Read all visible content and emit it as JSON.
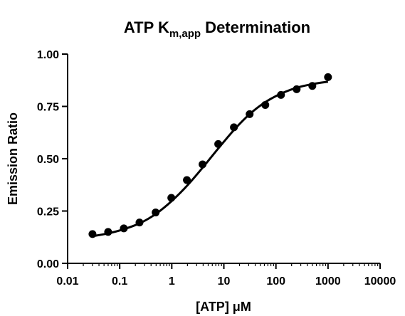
{
  "chart_data": {
    "type": "scatter",
    "title": "ATP K",
    "title_subscript": "m,app",
    "title_suffix": " Determination",
    "xlabel": "[ATP] μM",
    "ylabel": "Emission Ratio",
    "x_scale": "log",
    "xlim": [
      0.01,
      10000
    ],
    "ylim": [
      0,
      1
    ],
    "x_ticks": [
      "0.01",
      "0.1",
      "1",
      "10",
      "100",
      "1000",
      "10000"
    ],
    "y_ticks": [
      "0.00",
      "0.25",
      "0.50",
      "0.75",
      "1.00"
    ],
    "grid": false,
    "series": [
      {
        "x": [
          0.03,
          0.06,
          0.12,
          0.24,
          0.49,
          0.98,
          1.95,
          3.9,
          7.8,
          15.6,
          31.25,
          62.5,
          125,
          250,
          500,
          1000
        ],
        "y": [
          0.14,
          0.15,
          0.167,
          0.195,
          0.243,
          0.313,
          0.398,
          0.473,
          0.57,
          0.65,
          0.713,
          0.757,
          0.805,
          0.832,
          0.848,
          0.89
        ],
        "color": "#000000"
      }
    ],
    "fit_curve": {
      "model": "sigmoidal dose-response",
      "x": [
        0.03,
        0.06,
        0.12,
        0.25,
        0.5,
        1,
        2,
        4,
        8,
        16,
        32,
        64,
        128,
        256,
        512,
        1000
      ],
      "y": [
        0.13,
        0.143,
        0.163,
        0.193,
        0.237,
        0.298,
        0.373,
        0.46,
        0.552,
        0.64,
        0.715,
        0.772,
        0.812,
        0.84,
        0.857,
        0.868
      ],
      "color": "#000000"
    }
  }
}
